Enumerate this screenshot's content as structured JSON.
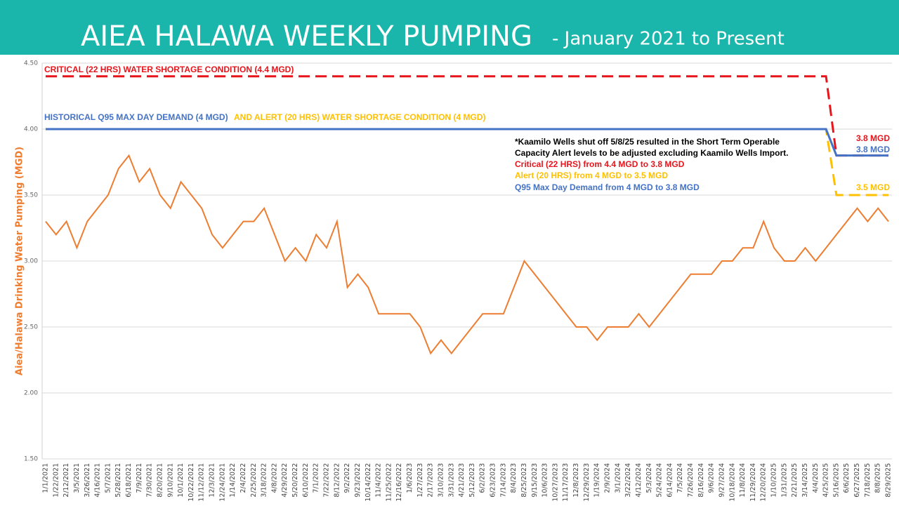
{
  "chart_data": {
    "type": "line",
    "title": "AIEA HALAWA WEEKLY PUMPING",
    "subtitle": "- January 2021 to Present",
    "y_label": "Aiea/Halawa Drinking Water Pumping (MGD)",
    "categories": [
      "1/1/2021",
      "1/22/2021",
      "2/12/2021",
      "3/5/2021",
      "3/26/2021",
      "4/16/2021",
      "5/7/2021",
      "5/28/2021",
      "6/18/2021",
      "7/9/2021",
      "7/30/2021",
      "8/20/2021",
      "9/10/2021",
      "10/1/2021",
      "10/22/2021",
      "11/12/2021",
      "12/3/2021",
      "12/24/2021",
      "1/14/2022",
      "2/4/2022",
      "2/25/2022",
      "3/18/2022",
      "4/8/2022",
      "4/29/2022",
      "5/20/2022",
      "6/10/2022",
      "7/1/2022",
      "7/22/2022",
      "8/12/2022",
      "9/2/2022",
      "9/23/2022",
      "10/14/2022",
      "11/4/2022",
      "11/25/2022",
      "12/16/2022",
      "1/6/2023",
      "1/27/2023",
      "2/17/2023",
      "3/10/2023",
      "3/31/2023",
      "4/21/2023",
      "5/12/2023",
      "6/2/2023",
      "6/23/2023",
      "7/14/2023",
      "8/4/2023",
      "8/25/2023",
      "9/15/2023",
      "10/6/2023",
      "10/27/2023",
      "11/17/2023",
      "12/8/2023",
      "12/29/2023",
      "1/19/2024",
      "2/9/2024",
      "3/1/2024",
      "3/22/2024",
      "4/12/2024",
      "5/3/2024",
      "5/24/2024",
      "6/14/2024",
      "7/5/2024",
      "7/26/2024",
      "8/16/2024",
      "9/6/2024",
      "9/27/2024",
      "10/18/2024",
      "11/8/2024",
      "11/29/2024",
      "12/20/2024",
      "1/10/2025",
      "1/31/2025",
      "2/21/2025",
      "3/14/2025",
      "4/4/2025",
      "4/25/2025",
      "5/16/2025",
      "6/6/2025",
      "6/27/2025",
      "7/18/2025",
      "8/8/2025",
      "8/29/2025"
    ],
    "series": [
      {
        "name": "Pumping",
        "color": "#ed7d31",
        "style": "solid",
        "values": [
          3.3,
          3.2,
          3.3,
          3.1,
          3.3,
          3.4,
          3.5,
          3.7,
          3.8,
          3.6,
          3.7,
          3.5,
          3.4,
          3.6,
          3.5,
          3.4,
          3.2,
          3.1,
          3.2,
          3.3,
          3.3,
          3.4,
          3.2,
          3.0,
          3.1,
          3.0,
          3.2,
          3.1,
          3.3,
          2.8,
          2.9,
          2.8,
          2.6,
          2.6,
          2.6,
          2.6,
          2.5,
          2.3,
          2.4,
          2.3,
          2.4,
          2.5,
          2.6,
          2.6,
          2.6,
          2.8,
          3.0,
          2.9,
          2.8,
          2.7,
          2.6,
          2.5,
          2.5,
          2.4,
          2.5,
          2.5,
          2.5,
          2.6,
          2.5,
          2.6,
          2.7,
          2.8,
          2.9,
          2.9,
          2.9,
          3.0,
          3.0,
          3.1,
          3.1,
          3.3,
          3.1,
          3.0,
          3.0,
          3.1,
          3.0,
          3.1,
          3.2,
          3.3,
          3.4,
          3.3,
          3.4,
          3.3
        ]
      },
      {
        "name": "Critical",
        "color": "#e8141b",
        "style": "dashed",
        "values": [
          4.4,
          4.4,
          4.4,
          4.4,
          4.4,
          4.4,
          4.4,
          4.4,
          4.4,
          4.4,
          4.4,
          4.4,
          4.4,
          4.4,
          4.4,
          4.4,
          4.4,
          4.4,
          4.4,
          4.4,
          4.4,
          4.4,
          4.4,
          4.4,
          4.4,
          4.4,
          4.4,
          4.4,
          4.4,
          4.4,
          4.4,
          4.4,
          4.4,
          4.4,
          4.4,
          4.4,
          4.4,
          4.4,
          4.4,
          4.4,
          4.4,
          4.4,
          4.4,
          4.4,
          4.4,
          4.4,
          4.4,
          4.4,
          4.4,
          4.4,
          4.4,
          4.4,
          4.4,
          4.4,
          4.4,
          4.4,
          4.4,
          4.4,
          4.4,
          4.4,
          4.4,
          4.4,
          4.4,
          4.4,
          4.4,
          4.4,
          4.4,
          4.4,
          4.4,
          4.4,
          4.4,
          4.4,
          4.4,
          4.4,
          4.4,
          4.4,
          3.8,
          3.8,
          3.8,
          3.8,
          3.8,
          3.8
        ]
      },
      {
        "name": "Q95",
        "color": "#4472c4",
        "style": "solid",
        "values": [
          4,
          4,
          4,
          4,
          4,
          4,
          4,
          4,
          4,
          4,
          4,
          4,
          4,
          4,
          4,
          4,
          4,
          4,
          4,
          4,
          4,
          4,
          4,
          4,
          4,
          4,
          4,
          4,
          4,
          4,
          4,
          4,
          4,
          4,
          4,
          4,
          4,
          4,
          4,
          4,
          4,
          4,
          4,
          4,
          4,
          4,
          4,
          4,
          4,
          4,
          4,
          4,
          4,
          4,
          4,
          4,
          4,
          4,
          4,
          4,
          4,
          4,
          4,
          4,
          4,
          4,
          4,
          4,
          4,
          4,
          4,
          4,
          4,
          4,
          4,
          4,
          3.8,
          3.8,
          3.8,
          3.8,
          3.8,
          3.8
        ]
      },
      {
        "name": "Alert",
        "color": "#ffc000",
        "style": "dashed",
        "values": [
          4,
          4,
          4,
          4,
          4,
          4,
          4,
          4,
          4,
          4,
          4,
          4,
          4,
          4,
          4,
          4,
          4,
          4,
          4,
          4,
          4,
          4,
          4,
          4,
          4,
          4,
          4,
          4,
          4,
          4,
          4,
          4,
          4,
          4,
          4,
          4,
          4,
          4,
          4,
          4,
          4,
          4,
          4,
          4,
          4,
          4,
          4,
          4,
          4,
          4,
          4,
          4,
          4,
          4,
          4,
          4,
          4,
          4,
          4,
          4,
          4,
          4,
          4,
          4,
          4,
          4,
          4,
          4,
          4,
          4,
          4,
          4,
          4,
          4,
          4,
          4,
          3.5,
          3.5,
          3.5,
          3.5,
          3.5,
          3.5
        ]
      }
    ],
    "ylim": [
      1.5,
      4.5
    ],
    "yticks": [
      {
        "value": 1.5,
        "label": "1.50"
      },
      {
        "value": 2,
        "label": "2.00"
      },
      {
        "value": 2.5,
        "label": "2.50"
      },
      {
        "value": 3,
        "label": "3.00"
      },
      {
        "value": 3.5,
        "label": "3.50"
      },
      {
        "value": 4,
        "label": "4.00"
      },
      {
        "value": 4.5,
        "label": "4.50"
      }
    ],
    "grid": true,
    "annotations": [
      {
        "text": "CRITICAL (22 HRS) WATER SHORTAGE CONDITION (4.4 MGD)",
        "color": "#e8141b"
      },
      {
        "text": "HISTORICAL Q95 MAX DAY DEMAND (4 MGD)",
        "color": "#4472c4"
      },
      {
        "text": "AND ALERT (20 HRS) WATER SHORTAGE CONDITION (4 MGD)",
        "color": "#ffc000"
      },
      {
        "text": "*Kaamilo Wells shut off 5/8/25 resulted in the Short Term Operable",
        "color": "#000000"
      },
      {
        "text": "Capacity Alert levels to be adjusted excluding Kaamilo Wells Import.",
        "color": "#000000"
      },
      {
        "text": "Critical (22 HRS) from 4.4 MGD to 3.8 MGD",
        "color": "#e8141b"
      },
      {
        "text": "Alert (20 HRS) from 4 MGD to 3.5 MGD",
        "color": "#ffc000"
      },
      {
        "text": "Q95 Max Day Demand from 4 MGD to 3.8 MGD",
        "color": "#4472c4"
      },
      {
        "text": "3.8 MGD",
        "color": "#e8141b"
      },
      {
        "text": "3.8 MGD",
        "color": "#4472c4"
      },
      {
        "text": "3.5 MGD",
        "color": "#ffc000"
      }
    ]
  }
}
